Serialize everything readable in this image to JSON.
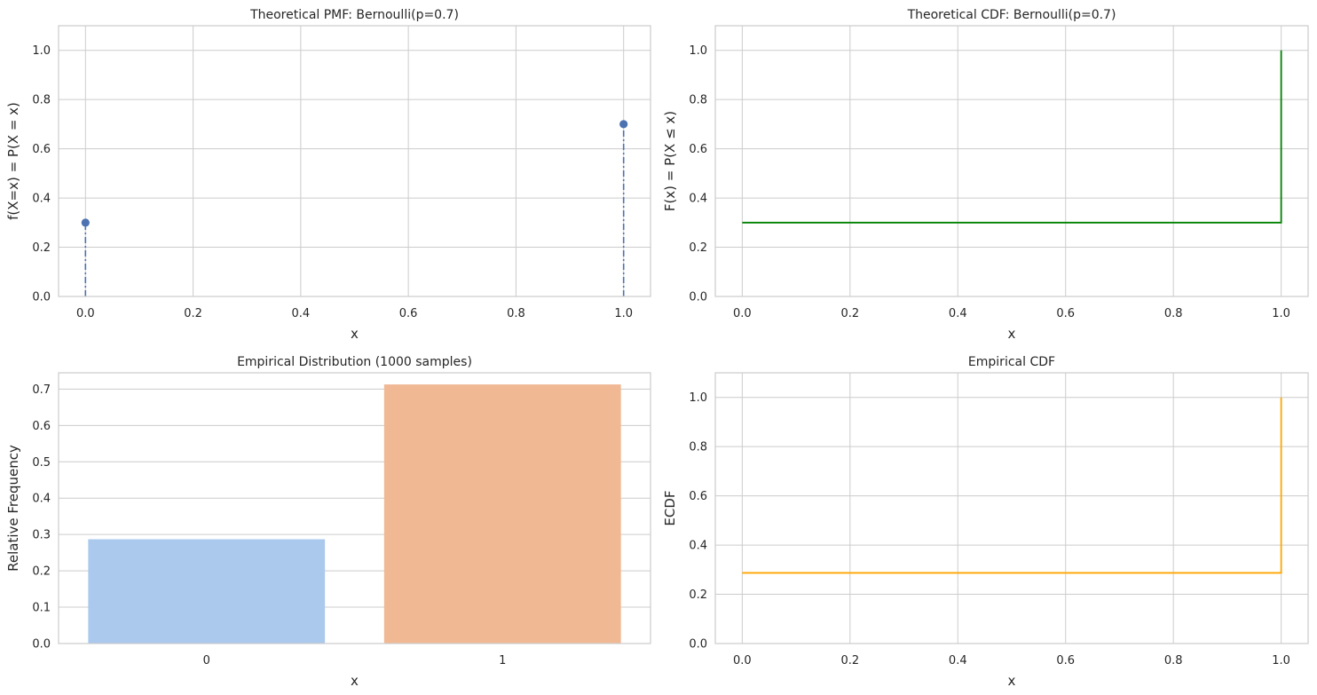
{
  "chart_data": [
    {
      "type": "stem",
      "title": "Theoretical PMF: Bernoulli(p=0.7)",
      "xlabel": "x",
      "ylabel": "f(X=x) = P(X = x)",
      "x": [
        0,
        1
      ],
      "y": [
        0.3,
        0.7
      ],
      "xlim": [
        -0.05,
        1.05
      ],
      "ylim": [
        0,
        1.1
      ],
      "xticks": [
        "0.0",
        "0.2",
        "0.4",
        "0.6",
        "0.8",
        "1.0"
      ],
      "yticks": [
        "0.0",
        "0.2",
        "0.4",
        "0.6",
        "0.8",
        "1.0"
      ],
      "color": "#4c72b0",
      "grid": true
    },
    {
      "type": "line",
      "title": "Theoretical CDF: Bernoulli(p=0.7)",
      "xlabel": "x",
      "ylabel": "F(x) = P(X ≤ x)",
      "x": [
        0,
        1,
        1
      ],
      "y": [
        0.3,
        0.3,
        1.0
      ],
      "xlim": [
        -0.05,
        1.05
      ],
      "ylim": [
        0,
        1.1
      ],
      "xticks": [
        "0.0",
        "0.2",
        "0.4",
        "0.6",
        "0.8",
        "1.0"
      ],
      "yticks": [
        "0.0",
        "0.2",
        "0.4",
        "0.6",
        "0.8",
        "1.0"
      ],
      "color": "#008000",
      "grid": true
    },
    {
      "type": "bar",
      "title": "Empirical Distribution (1000 samples)",
      "xlabel": "x",
      "ylabel": "Relative Frequency",
      "categories": [
        "0",
        "1"
      ],
      "values": [
        0.287,
        0.713
      ],
      "ylim": [
        0,
        0.745
      ],
      "yticks": [
        "0.0",
        "0.1",
        "0.2",
        "0.3",
        "0.4",
        "0.5",
        "0.6",
        "0.7"
      ],
      "colors": [
        "#abc9ec",
        "#f0b893"
      ],
      "grid": true
    },
    {
      "type": "line",
      "title": "Empirical CDF",
      "xlabel": "x",
      "ylabel": "ECDF",
      "x": [
        0,
        1,
        1
      ],
      "y": [
        0.287,
        0.287,
        1.0
      ],
      "xlim": [
        -0.05,
        1.05
      ],
      "ylim": [
        0,
        1.1
      ],
      "xticks": [
        "0.0",
        "0.2",
        "0.4",
        "0.6",
        "0.8",
        "1.0"
      ],
      "yticks": [
        "0.0",
        "0.2",
        "0.4",
        "0.6",
        "0.8",
        "1.0"
      ],
      "color": "#ffa500",
      "grid": true
    }
  ]
}
